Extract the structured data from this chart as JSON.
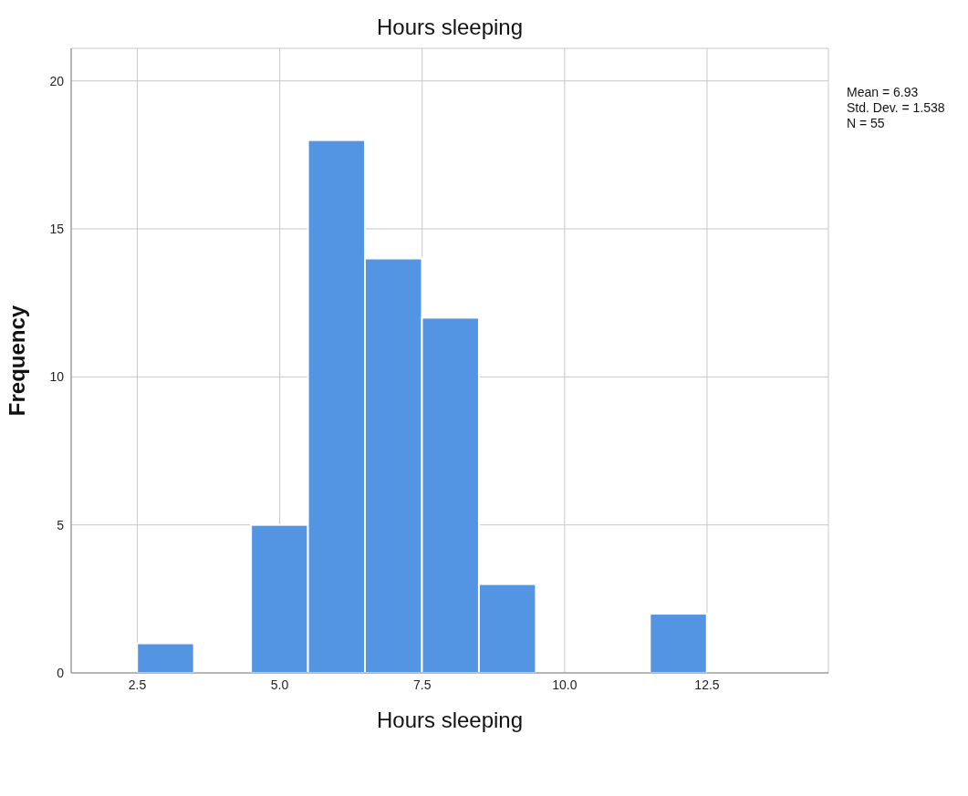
{
  "chart_data": {
    "type": "histogram",
    "title": "Hours sleeping",
    "xlabel": "Hours sleeping",
    "ylabel": "Frequency",
    "bins": [
      2.5,
      3.5,
      4.5,
      5.5,
      6.5,
      7.5,
      8.5,
      9.5,
      10.5,
      11.5,
      12.5
    ],
    "values": [
      1,
      0,
      5,
      18,
      14,
      12,
      3,
      0,
      0,
      2
    ],
    "color": "#5394e3",
    "xlim": [
      1.34,
      14.63
    ],
    "xticks": [
      2.5,
      {
        "value": 5,
        "label": "5.0"
      },
      7.5,
      {
        "value": 10,
        "label": "10.0"
      },
      12.5
    ],
    "ylim": [
      0,
      21.1
    ],
    "yticks": [
      0,
      5,
      10,
      15,
      20
    ],
    "grid": true,
    "annotations": [
      "Mean = 6.93",
      "Std. Dev. = 1.538",
      "N = 55"
    ]
  }
}
